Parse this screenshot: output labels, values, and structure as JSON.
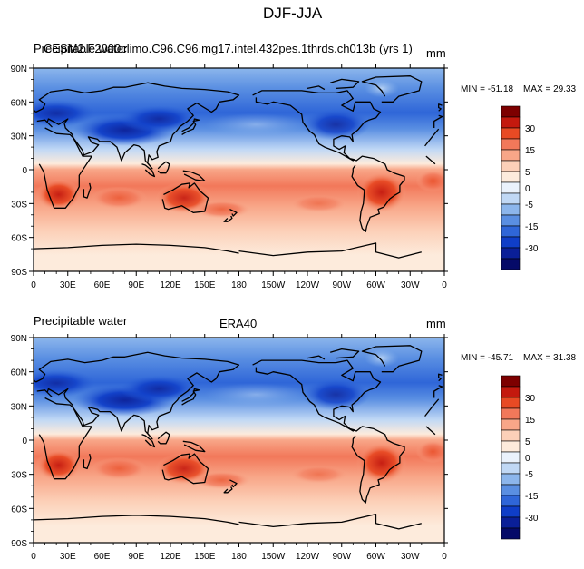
{
  "figure": {
    "title": "DJF-JJA"
  },
  "panels": [
    {
      "left_title": "Precipitable water",
      "center_title": "CESM2.F2000climo.C96.C96.mg17.intel.432pes.1thrds.ch013b (yrs 1)",
      "units": "mm",
      "min_label": "MIN = -51.18",
      "max_label": "MAX =  29.33"
    },
    {
      "left_title": "Precipitable water",
      "center_title": "ERA40",
      "units": "mm",
      "min_label": "MIN = -45.71",
      "max_label": "MAX =  31.38"
    }
  ],
  "axes": {
    "x_ticks": [
      "0",
      "30E",
      "60E",
      "90E",
      "120E",
      "150E",
      "180",
      "150W",
      "120W",
      "90W",
      "60W",
      "30W",
      "0"
    ],
    "y_ticks": [
      "90N",
      "60N",
      "30N",
      "0",
      "30S",
      "60S",
      "90S"
    ]
  },
  "colorbar": {
    "labels": [
      "30",
      "15",
      "5",
      "0",
      "-5",
      "-15",
      "-30"
    ],
    "colors": [
      "#7d0000",
      "#c4190e",
      "#e84a24",
      "#f2785a",
      "#f8a688",
      "#fcd0b8",
      "#fdebdc",
      "#eaf2fc",
      "#c0d8f5",
      "#8cb6ec",
      "#5a8fe2",
      "#2f66d8",
      "#0f3ec8",
      "#0a1f98",
      "#050a68"
    ]
  },
  "chart_data": [
    {
      "type": "heatmap",
      "title": "CESM2.F2000climo.C96.C96.mg17.intel.432pes.1thrds.ch013b (yrs 1)",
      "variable": "Precipitable water",
      "units": "mm",
      "season_difference": "DJF-JJA",
      "x_range": [
        0,
        360
      ],
      "y_range": [
        -90,
        90
      ],
      "min": -51.18,
      "max": 29.33,
      "levels": [
        -30,
        -15,
        -5,
        0,
        5,
        15,
        30
      ]
    },
    {
      "type": "heatmap",
      "title": "ERA40",
      "variable": "Precipitable water",
      "units": "mm",
      "season_difference": "DJF-JJA",
      "x_range": [
        0,
        360
      ],
      "y_range": [
        -90,
        90
      ],
      "min": -45.71,
      "max": 31.38,
      "levels": [
        -30,
        -15,
        -5,
        0,
        5,
        15,
        30
      ]
    }
  ]
}
